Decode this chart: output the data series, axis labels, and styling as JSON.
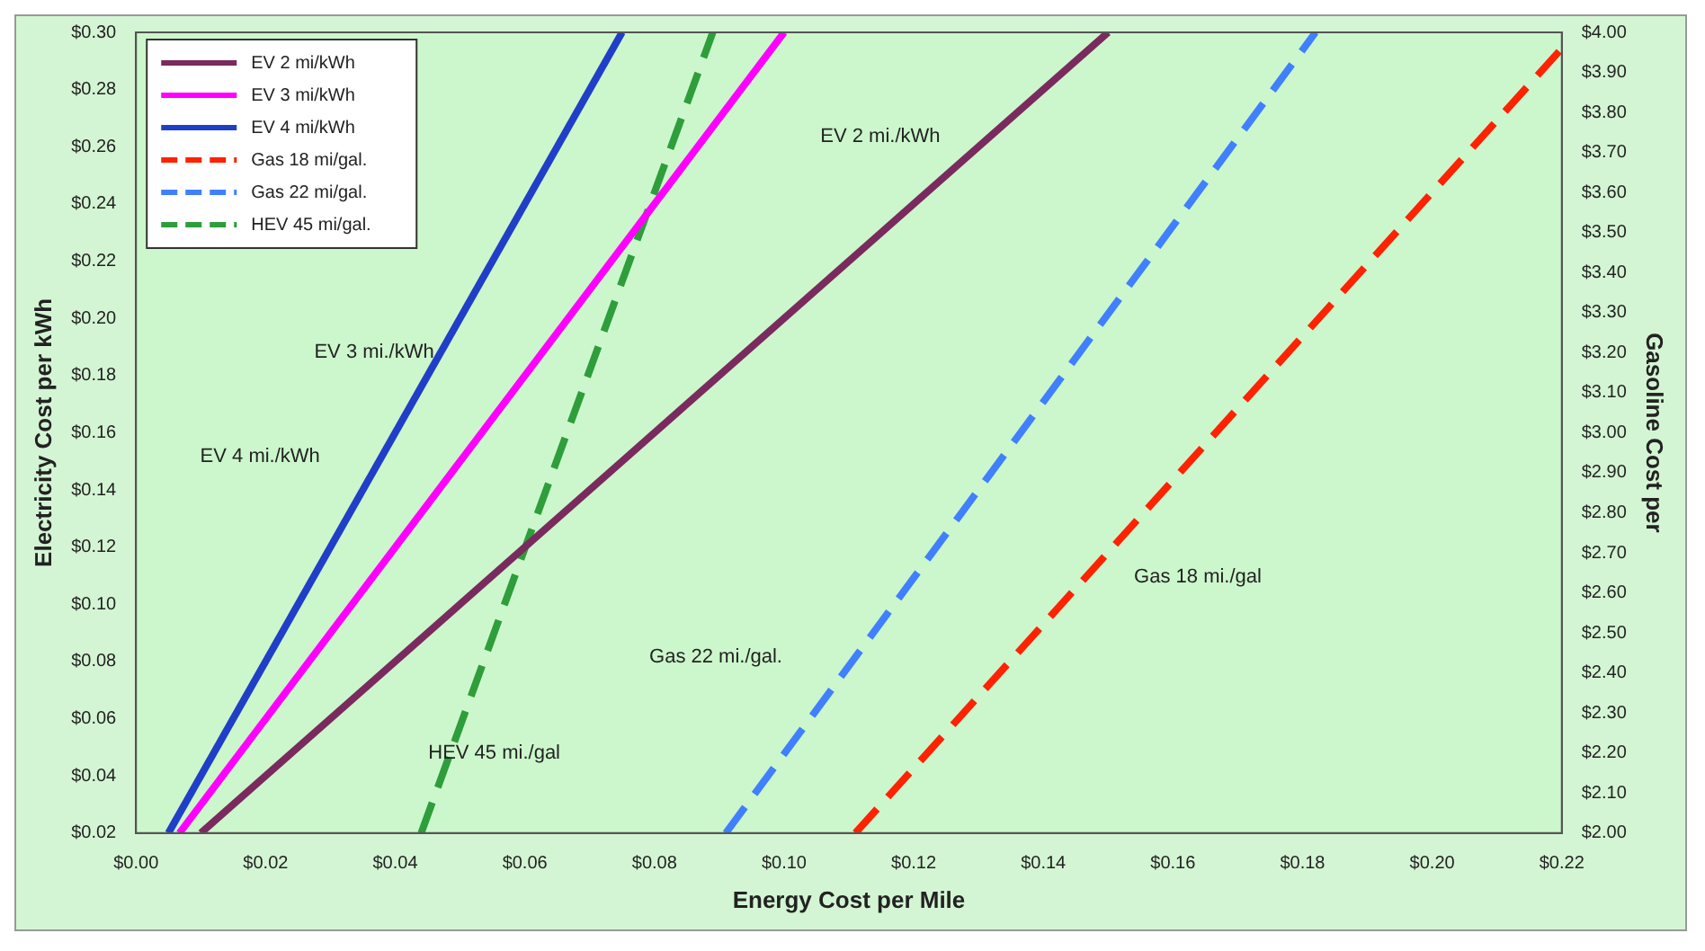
{
  "chart_data": {
    "type": "line",
    "xlabel": "Energy Cost per Mile",
    "ylabel": "Electricity Cost per kWh",
    "y2label": "Gasoline Cost per",
    "xlim": [
      0,
      0.22
    ],
    "ylim": [
      0.02,
      0.3
    ],
    "y2lim": [
      2.0,
      4.0
    ],
    "xticks": [
      {
        "value": 0,
        "label": "$0.00"
      },
      {
        "value": 0.02,
        "label": "$0.02"
      },
      {
        "value": 0.04,
        "label": "$0.04"
      },
      {
        "value": 0.06,
        "label": "$0.06"
      },
      {
        "value": 0.08,
        "label": "$0.08"
      },
      {
        "value": 0.1,
        "label": "$0.10"
      },
      {
        "value": 0.12,
        "label": "$0.12"
      },
      {
        "value": 0.14,
        "label": "$0.14"
      },
      {
        "value": 0.16,
        "label": "$0.16"
      },
      {
        "value": 0.18,
        "label": "$0.18"
      },
      {
        "value": 0.2,
        "label": "$0.20"
      },
      {
        "value": 0.22,
        "label": "$0.22"
      }
    ],
    "yticks": [
      {
        "value": 0.02,
        "label": "$0.02"
      },
      {
        "value": 0.04,
        "label": "$0.04"
      },
      {
        "value": 0.06,
        "label": "$0.06"
      },
      {
        "value": 0.08,
        "label": "$0.08"
      },
      {
        "value": 0.1,
        "label": "$0.10"
      },
      {
        "value": 0.12,
        "label": "$0.12"
      },
      {
        "value": 0.14,
        "label": "$0.14"
      },
      {
        "value": 0.16,
        "label": "$0.16"
      },
      {
        "value": 0.18,
        "label": "$0.18"
      },
      {
        "value": 0.2,
        "label": "$0.20"
      },
      {
        "value": 0.22,
        "label": "$0.22"
      },
      {
        "value": 0.24,
        "label": "$0.24"
      },
      {
        "value": 0.26,
        "label": "$0.26"
      },
      {
        "value": 0.28,
        "label": "$0.28"
      },
      {
        "value": 0.3,
        "label": "$0.30"
      }
    ],
    "y2ticks": [
      {
        "value": 2.0,
        "label": "$2.00"
      },
      {
        "value": 2.1,
        "label": "$2.10"
      },
      {
        "value": 2.2,
        "label": "$2.20"
      },
      {
        "value": 2.3,
        "label": "$2.30"
      },
      {
        "value": 2.4,
        "label": "$2.40"
      },
      {
        "value": 2.5,
        "label": "$2.50"
      },
      {
        "value": 2.6,
        "label": "$2.60"
      },
      {
        "value": 2.7,
        "label": "$2.70"
      },
      {
        "value": 2.8,
        "label": "$2.80"
      },
      {
        "value": 2.9,
        "label": "$2.90"
      },
      {
        "value": 3.0,
        "label": "$3.00"
      },
      {
        "value": 3.1,
        "label": "$3.10"
      },
      {
        "value": 3.2,
        "label": "$3.20"
      },
      {
        "value": 3.3,
        "label": "$3.30"
      },
      {
        "value": 3.4,
        "label": "$3.40"
      },
      {
        "value": 3.5,
        "label": "$3.50"
      },
      {
        "value": 3.6,
        "label": "$3.60"
      },
      {
        "value": 3.7,
        "label": "$3.70"
      },
      {
        "value": 3.8,
        "label": "$3.80"
      },
      {
        "value": 3.9,
        "label": "$3.90"
      },
      {
        "value": 4.0,
        "label": "$4.00"
      }
    ],
    "grid": false,
    "legend": "top left",
    "marker": "none",
    "series": [
      {
        "name": "EV 2 mi/kWh",
        "color": "#7a2a5e",
        "line_style": "solid",
        "x": [
          0.01,
          0.15
        ],
        "values": [
          0.02,
          0.3
        ]
      },
      {
        "name": "EV 3 mi/kWh",
        "color": "#ff00ff",
        "line_style": "solid",
        "x": [
          0.0067,
          0.1
        ],
        "values": [
          0.02,
          0.3
        ]
      },
      {
        "name": "EV 4 mi/kWh",
        "color": "#1f3fc8",
        "line_style": "solid",
        "x": [
          0.005,
          0.075
        ],
        "values": [
          0.02,
          0.3
        ]
      },
      {
        "name": "Gas 18 mi/gal.",
        "color": "#ff2200",
        "line_style": "dashed",
        "axis": "y2",
        "x": [
          0.111,
          0.22
        ],
        "values": [
          2.0,
          3.96
        ]
      },
      {
        "name": "Gas 22 mi/gal.",
        "color": "#4080ff",
        "line_style": "dashed",
        "axis": "y2",
        "x": [
          0.091,
          0.182
        ],
        "values": [
          2.0,
          4.0
        ]
      },
      {
        "name": "HEV 45 mi/gal.",
        "color": "#2e9e3a",
        "line_style": "dashed",
        "axis": "y2",
        "x": [
          0.044,
          0.089
        ],
        "values": [
          2.0,
          4.0
        ]
      }
    ],
    "annotations": [
      "EV 2 mi./kWh",
      "EV 3 mi./kWh",
      "EV 4 mi./kWh",
      "Gas 18 mi./gal",
      "Gas 22 mi./gal.",
      "HEV 45 mi./gal"
    ]
  }
}
